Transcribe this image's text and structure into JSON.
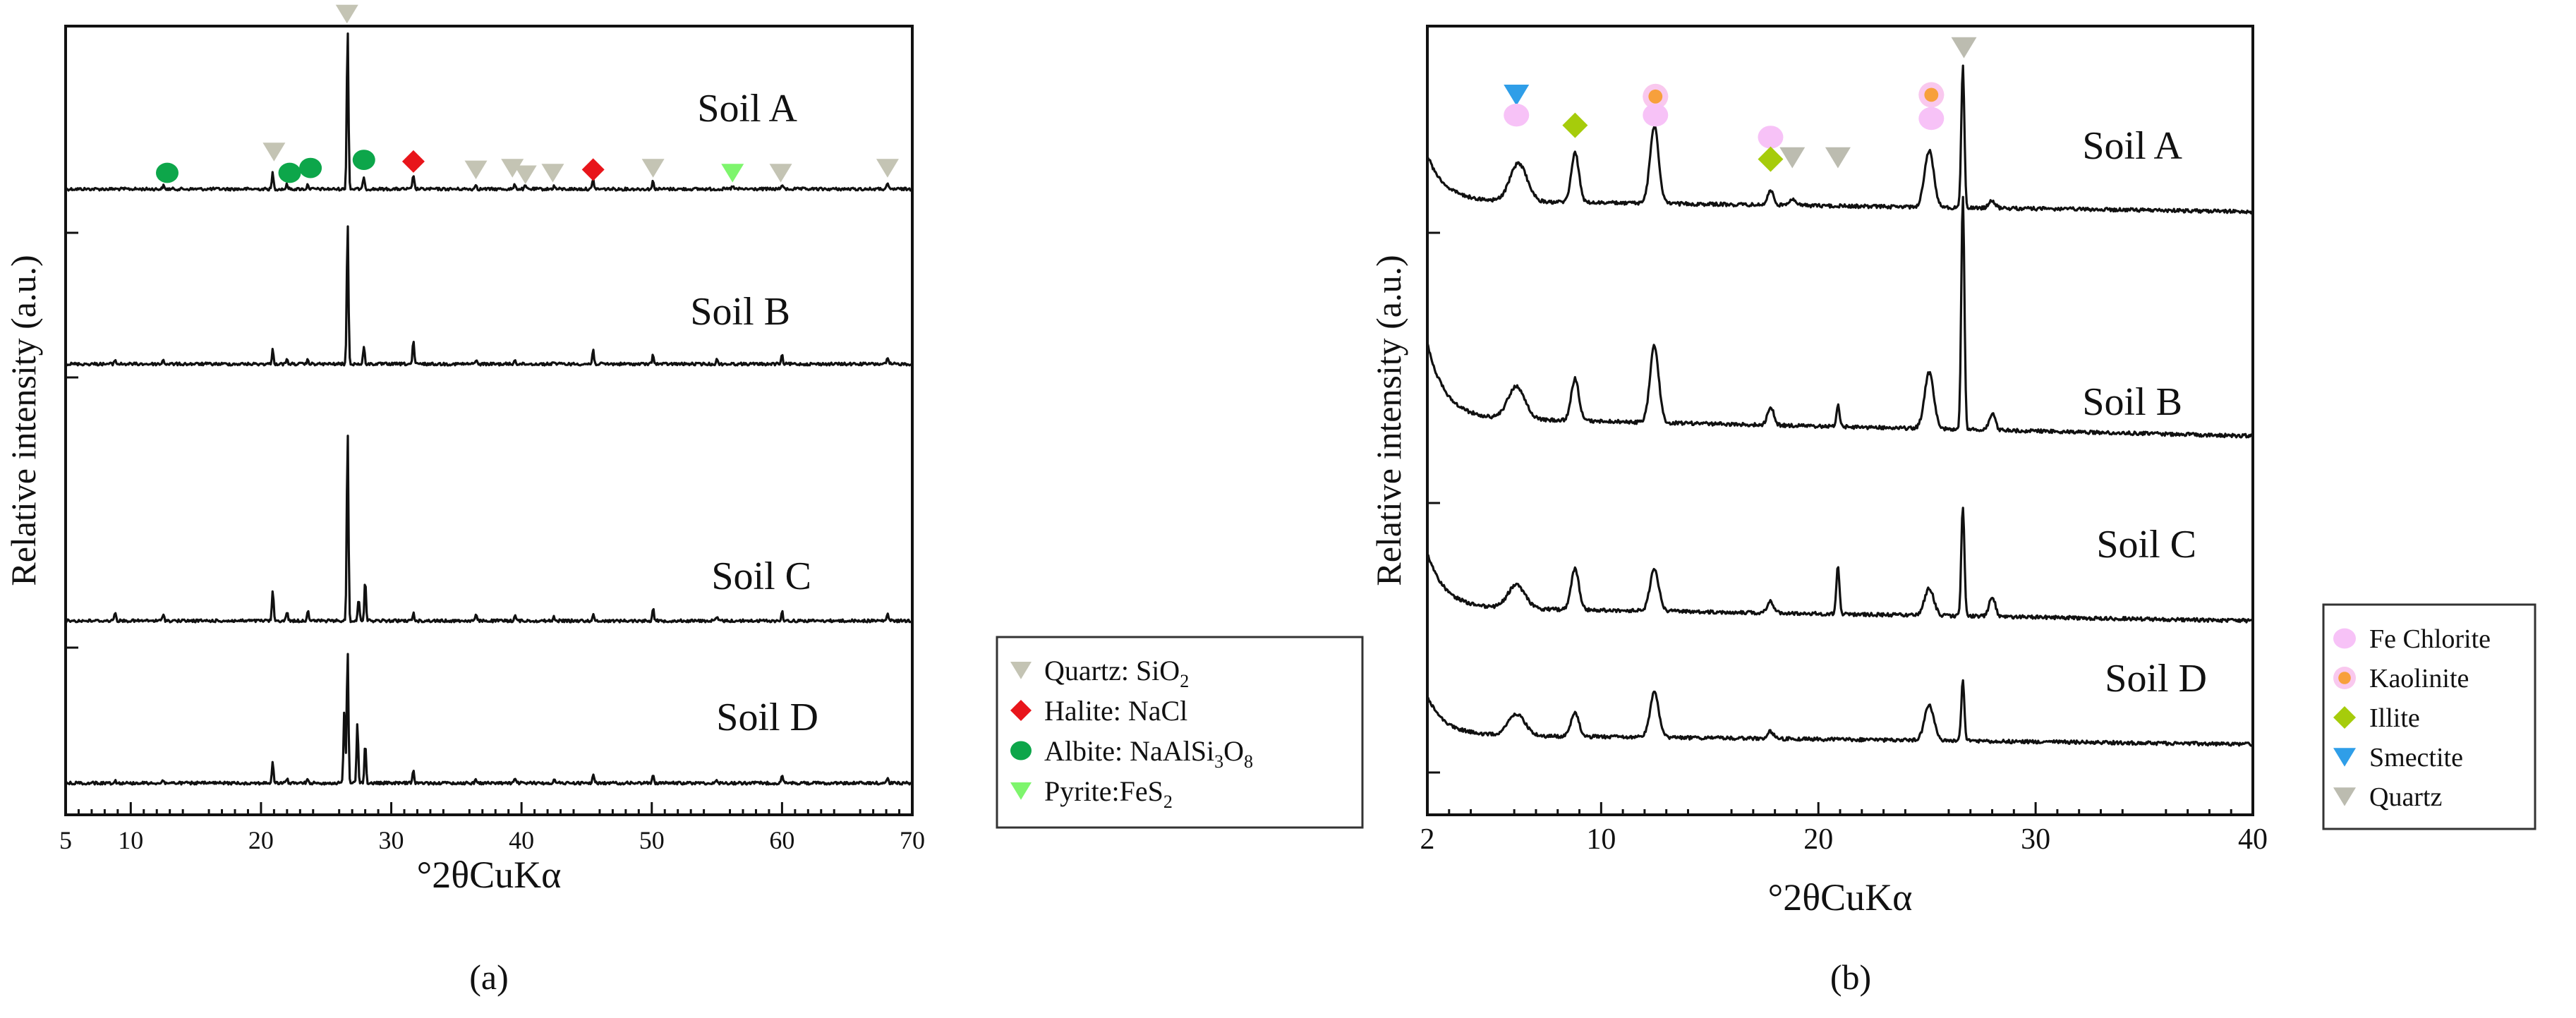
{
  "chart_data": [
    {
      "type": "line",
      "panel": "(a)",
      "xlabel": "°2θCuKα",
      "ylabel": "Relative intensity (a.u.)",
      "xlim": [
        5,
        70
      ],
      "x_ticks": [
        5,
        10,
        20,
        30,
        40,
        50,
        60,
        70
      ],
      "series": [
        {
          "name": "Soil A",
          "peaks": [
            {
              "x": 12.5,
              "h": 0.02
            },
            {
              "x": 20.9,
              "h": 0.1
            },
            {
              "x": 22.0,
              "h": 0.03
            },
            {
              "x": 23.6,
              "h": 0.03
            },
            {
              "x": 26.65,
              "h": 1.0
            },
            {
              "x": 27.9,
              "h": 0.08
            },
            {
              "x": 31.7,
              "h": 0.09
            },
            {
              "x": 36.5,
              "h": 0.03
            },
            {
              "x": 39.5,
              "h": 0.03
            },
            {
              "x": 40.3,
              "h": 0.02
            },
            {
              "x": 42.5,
              "h": 0.02
            },
            {
              "x": 45.5,
              "h": 0.06
            },
            {
              "x": 50.1,
              "h": 0.05
            },
            {
              "x": 56.2,
              "h": 0.02
            },
            {
              "x": 60.0,
              "h": 0.03
            },
            {
              "x": 68.1,
              "h": 0.03
            }
          ]
        },
        {
          "name": "Soil B",
          "peaks": [
            {
              "x": 8.8,
              "h": 0.03
            },
            {
              "x": 12.5,
              "h": 0.03
            },
            {
              "x": 20.9,
              "h": 0.1
            },
            {
              "x": 22.0,
              "h": 0.03
            },
            {
              "x": 23.6,
              "h": 0.03
            },
            {
              "x": 26.65,
              "h": 1.0
            },
            {
              "x": 27.9,
              "h": 0.12
            },
            {
              "x": 31.7,
              "h": 0.16
            },
            {
              "x": 36.5,
              "h": 0.03
            },
            {
              "x": 39.5,
              "h": 0.03
            },
            {
              "x": 42.5,
              "h": 0.02
            },
            {
              "x": 45.5,
              "h": 0.1
            },
            {
              "x": 50.1,
              "h": 0.07
            },
            {
              "x": 55.0,
              "h": 0.03
            },
            {
              "x": 60.0,
              "h": 0.06
            },
            {
              "x": 68.1,
              "h": 0.04
            }
          ]
        },
        {
          "name": "Soil C",
          "peaks": [
            {
              "x": 8.8,
              "h": 0.05
            },
            {
              "x": 12.5,
              "h": 0.04
            },
            {
              "x": 20.9,
              "h": 0.16
            },
            {
              "x": 22.0,
              "h": 0.05
            },
            {
              "x": 23.6,
              "h": 0.06
            },
            {
              "x": 26.65,
              "h": 1.0
            },
            {
              "x": 27.5,
              "h": 0.12
            },
            {
              "x": 28.0,
              "h": 0.22
            },
            {
              "x": 31.7,
              "h": 0.04
            },
            {
              "x": 36.5,
              "h": 0.03
            },
            {
              "x": 39.5,
              "h": 0.03
            },
            {
              "x": 42.5,
              "h": 0.02
            },
            {
              "x": 45.5,
              "h": 0.03
            },
            {
              "x": 50.1,
              "h": 0.07
            },
            {
              "x": 55.0,
              "h": 0.02
            },
            {
              "x": 60.0,
              "h": 0.05
            },
            {
              "x": 68.1,
              "h": 0.04
            }
          ]
        },
        {
          "name": "Soil D",
          "peaks": [
            {
              "x": 8.8,
              "h": 0.02
            },
            {
              "x": 12.5,
              "h": 0.02
            },
            {
              "x": 20.9,
              "h": 0.15
            },
            {
              "x": 22.0,
              "h": 0.03
            },
            {
              "x": 23.6,
              "h": 0.03
            },
            {
              "x": 26.4,
              "h": 0.55
            },
            {
              "x": 26.65,
              "h": 1.0
            },
            {
              "x": 27.4,
              "h": 0.45
            },
            {
              "x": 28.0,
              "h": 0.3
            },
            {
              "x": 31.7,
              "h": 0.09
            },
            {
              "x": 36.5,
              "h": 0.03
            },
            {
              "x": 39.5,
              "h": 0.03
            },
            {
              "x": 42.5,
              "h": 0.03
            },
            {
              "x": 45.5,
              "h": 0.07
            },
            {
              "x": 50.1,
              "h": 0.07
            },
            {
              "x": 55.0,
              "h": 0.02
            },
            {
              "x": 60.0,
              "h": 0.06
            },
            {
              "x": 68.1,
              "h": 0.04
            }
          ]
        }
      ],
      "markers": [
        {
          "mineral": "Quartz",
          "x": 26.6,
          "level": 1.08
        },
        {
          "mineral": "Quartz",
          "x": 21.0,
          "level": 0.23
        },
        {
          "mineral": "Quartz",
          "x": 36.5,
          "level": 0.12
        },
        {
          "mineral": "Quartz",
          "x": 39.3,
          "level": 0.13
        },
        {
          "mineral": "Quartz",
          "x": 40.3,
          "level": 0.09
        },
        {
          "mineral": "Quartz",
          "x": 42.4,
          "level": 0.1
        },
        {
          "mineral": "Quartz",
          "x": 50.1,
          "level": 0.13
        },
        {
          "mineral": "Quartz",
          "x": 59.9,
          "level": 0.1
        },
        {
          "mineral": "Quartz",
          "x": 68.1,
          "level": 0.13
        },
        {
          "mineral": "Halite",
          "x": 31.7,
          "level": 0.17
        },
        {
          "mineral": "Halite",
          "x": 45.5,
          "level": 0.12
        },
        {
          "mineral": "Albite",
          "x": 12.8,
          "level": 0.1
        },
        {
          "mineral": "Albite",
          "x": 22.2,
          "level": 0.1
        },
        {
          "mineral": "Albite",
          "x": 23.8,
          "level": 0.13
        },
        {
          "mineral": "Albite",
          "x": 27.9,
          "level": 0.18
        },
        {
          "mineral": "Pyrite",
          "x": 56.2,
          "level": 0.1
        }
      ],
      "legend": [
        {
          "mineral": "Quartz",
          "label": "Quartz: SiO",
          "sub": "2",
          "color": "#c4c4b4",
          "shape": "triangle-down"
        },
        {
          "mineral": "Halite",
          "label": "Halite: NaCl",
          "sub": "",
          "color": "#e8151b",
          "shape": "diamond"
        },
        {
          "mineral": "Albite",
          "label": "Albite: NaAlSi",
          "sub": "3",
          "label_tail": "O",
          "sub_tail": "8",
          "color": "#0da64a",
          "shape": "circle"
        },
        {
          "mineral": "Pyrite",
          "label": "Pyrite:FeS",
          "sub": "2",
          "color": "#7ef56d",
          "shape": "triangle-down"
        }
      ]
    },
    {
      "type": "line",
      "panel": "(b)",
      "xlabel": "°2θCuKα",
      "ylabel": "Relative intensity (a.u.)",
      "xlim": [
        2,
        40
      ],
      "x_ticks": [
        2,
        10,
        20,
        30,
        40
      ],
      "series": [
        {
          "name": "Soil A",
          "peaks": [
            {
              "x": 6.2,
              "h": 0.27,
              "w": 0.55
            },
            {
              "x": 8.8,
              "h": 0.35,
              "w": 0.25
            },
            {
              "x": 12.45,
              "h": 0.55,
              "w": 0.28
            },
            {
              "x": 17.8,
              "h": 0.1,
              "w": 0.2
            },
            {
              "x": 18.8,
              "h": 0.05,
              "w": 0.2
            },
            {
              "x": 25.1,
              "h": 0.4,
              "w": 0.3
            },
            {
              "x": 26.65,
              "h": 1.0,
              "w": 0.1
            },
            {
              "x": 28.0,
              "h": 0.05,
              "w": 0.2
            }
          ]
        },
        {
          "name": "Soil B",
          "peaks": [
            {
              "x": 6.1,
              "h": 0.14,
              "w": 0.55
            },
            {
              "x": 8.8,
              "h": 0.18,
              "w": 0.25
            },
            {
              "x": 12.45,
              "h": 0.33,
              "w": 0.28
            },
            {
              "x": 17.8,
              "h": 0.08,
              "w": 0.2
            },
            {
              "x": 20.9,
              "h": 0.09,
              "w": 0.1
            },
            {
              "x": 25.1,
              "h": 0.24,
              "w": 0.3
            },
            {
              "x": 26.65,
              "h": 1.0,
              "w": 0.1
            },
            {
              "x": 28.0,
              "h": 0.07,
              "w": 0.2
            }
          ]
        },
        {
          "name": "Soil C",
          "peaks": [
            {
              "x": 6.1,
              "h": 0.14,
              "w": 0.55
            },
            {
              "x": 8.8,
              "h": 0.24,
              "w": 0.25
            },
            {
              "x": 12.45,
              "h": 0.25,
              "w": 0.28
            },
            {
              "x": 17.8,
              "h": 0.07,
              "w": 0.2
            },
            {
              "x": 20.9,
              "h": 0.28,
              "w": 0.1
            },
            {
              "x": 25.1,
              "h": 0.16,
              "w": 0.3
            },
            {
              "x": 26.65,
              "h": 0.65,
              "w": 0.1
            },
            {
              "x": 28.0,
              "h": 0.12,
              "w": 0.2
            }
          ]
        },
        {
          "name": "Soil D",
          "peaks": [
            {
              "x": 6.1,
              "h": 0.18,
              "w": 0.55
            },
            {
              "x": 8.8,
              "h": 0.2,
              "w": 0.25
            },
            {
              "x": 12.45,
              "h": 0.37,
              "w": 0.28
            },
            {
              "x": 17.8,
              "h": 0.06,
              "w": 0.2
            },
            {
              "x": 25.1,
              "h": 0.3,
              "w": 0.3
            },
            {
              "x": 26.65,
              "h": 0.5,
              "w": 0.1
            }
          ]
        }
      ],
      "markers": [
        {
          "mineral": "Smectite",
          "x": 6.1,
          "level": 0.69
        },
        {
          "mineral": "Fe Chlorite",
          "x": 6.1,
          "level": 0.57
        },
        {
          "mineral": "Illite",
          "x": 8.8,
          "level": 0.51
        },
        {
          "mineral": "Fe Chlorite",
          "x": 12.5,
          "level": 0.68
        },
        {
          "mineral": "Kaolinite",
          "x": 12.5,
          "level": 0.68
        },
        {
          "mineral": "Fe Chlorite",
          "x": 12.5,
          "level": 0.57
        },
        {
          "mineral": "Fe Chlorite",
          "x": 17.8,
          "level": 0.44
        },
        {
          "mineral": "Illite",
          "x": 17.8,
          "level": 0.31
        },
        {
          "mineral": "Quartz",
          "x": 18.8,
          "level": 0.32
        },
        {
          "mineral": "Quartz",
          "x": 20.9,
          "level": 0.32
        },
        {
          "mineral": "Fe Chlorite",
          "x": 25.2,
          "level": 0.69
        },
        {
          "mineral": "Kaolinite",
          "x": 25.2,
          "level": 0.69
        },
        {
          "mineral": "Fe Chlorite",
          "x": 25.2,
          "level": 0.55
        },
        {
          "mineral": "Quartz",
          "x": 26.7,
          "level": 0.97
        }
      ],
      "legend": [
        {
          "mineral": "Fe Chlorite",
          "label": "Fe Chlorite",
          "color": "#f7c2f7",
          "shape": "circle"
        },
        {
          "mineral": "Kaolinite",
          "label": "Kaolinite",
          "color": "#f7a03c",
          "shape": "circle-ring"
        },
        {
          "mineral": "Illite",
          "label": "Illite",
          "color": "#a6cc0b",
          "shape": "diamond"
        },
        {
          "mineral": "Smectite",
          "label": "Smectite",
          "color": "#2f9ee8",
          "shape": "triangle-down"
        },
        {
          "mineral": "Quartz",
          "label": "Quartz",
          "color": "#bcbcb0",
          "shape": "triangle-down"
        }
      ]
    }
  ]
}
